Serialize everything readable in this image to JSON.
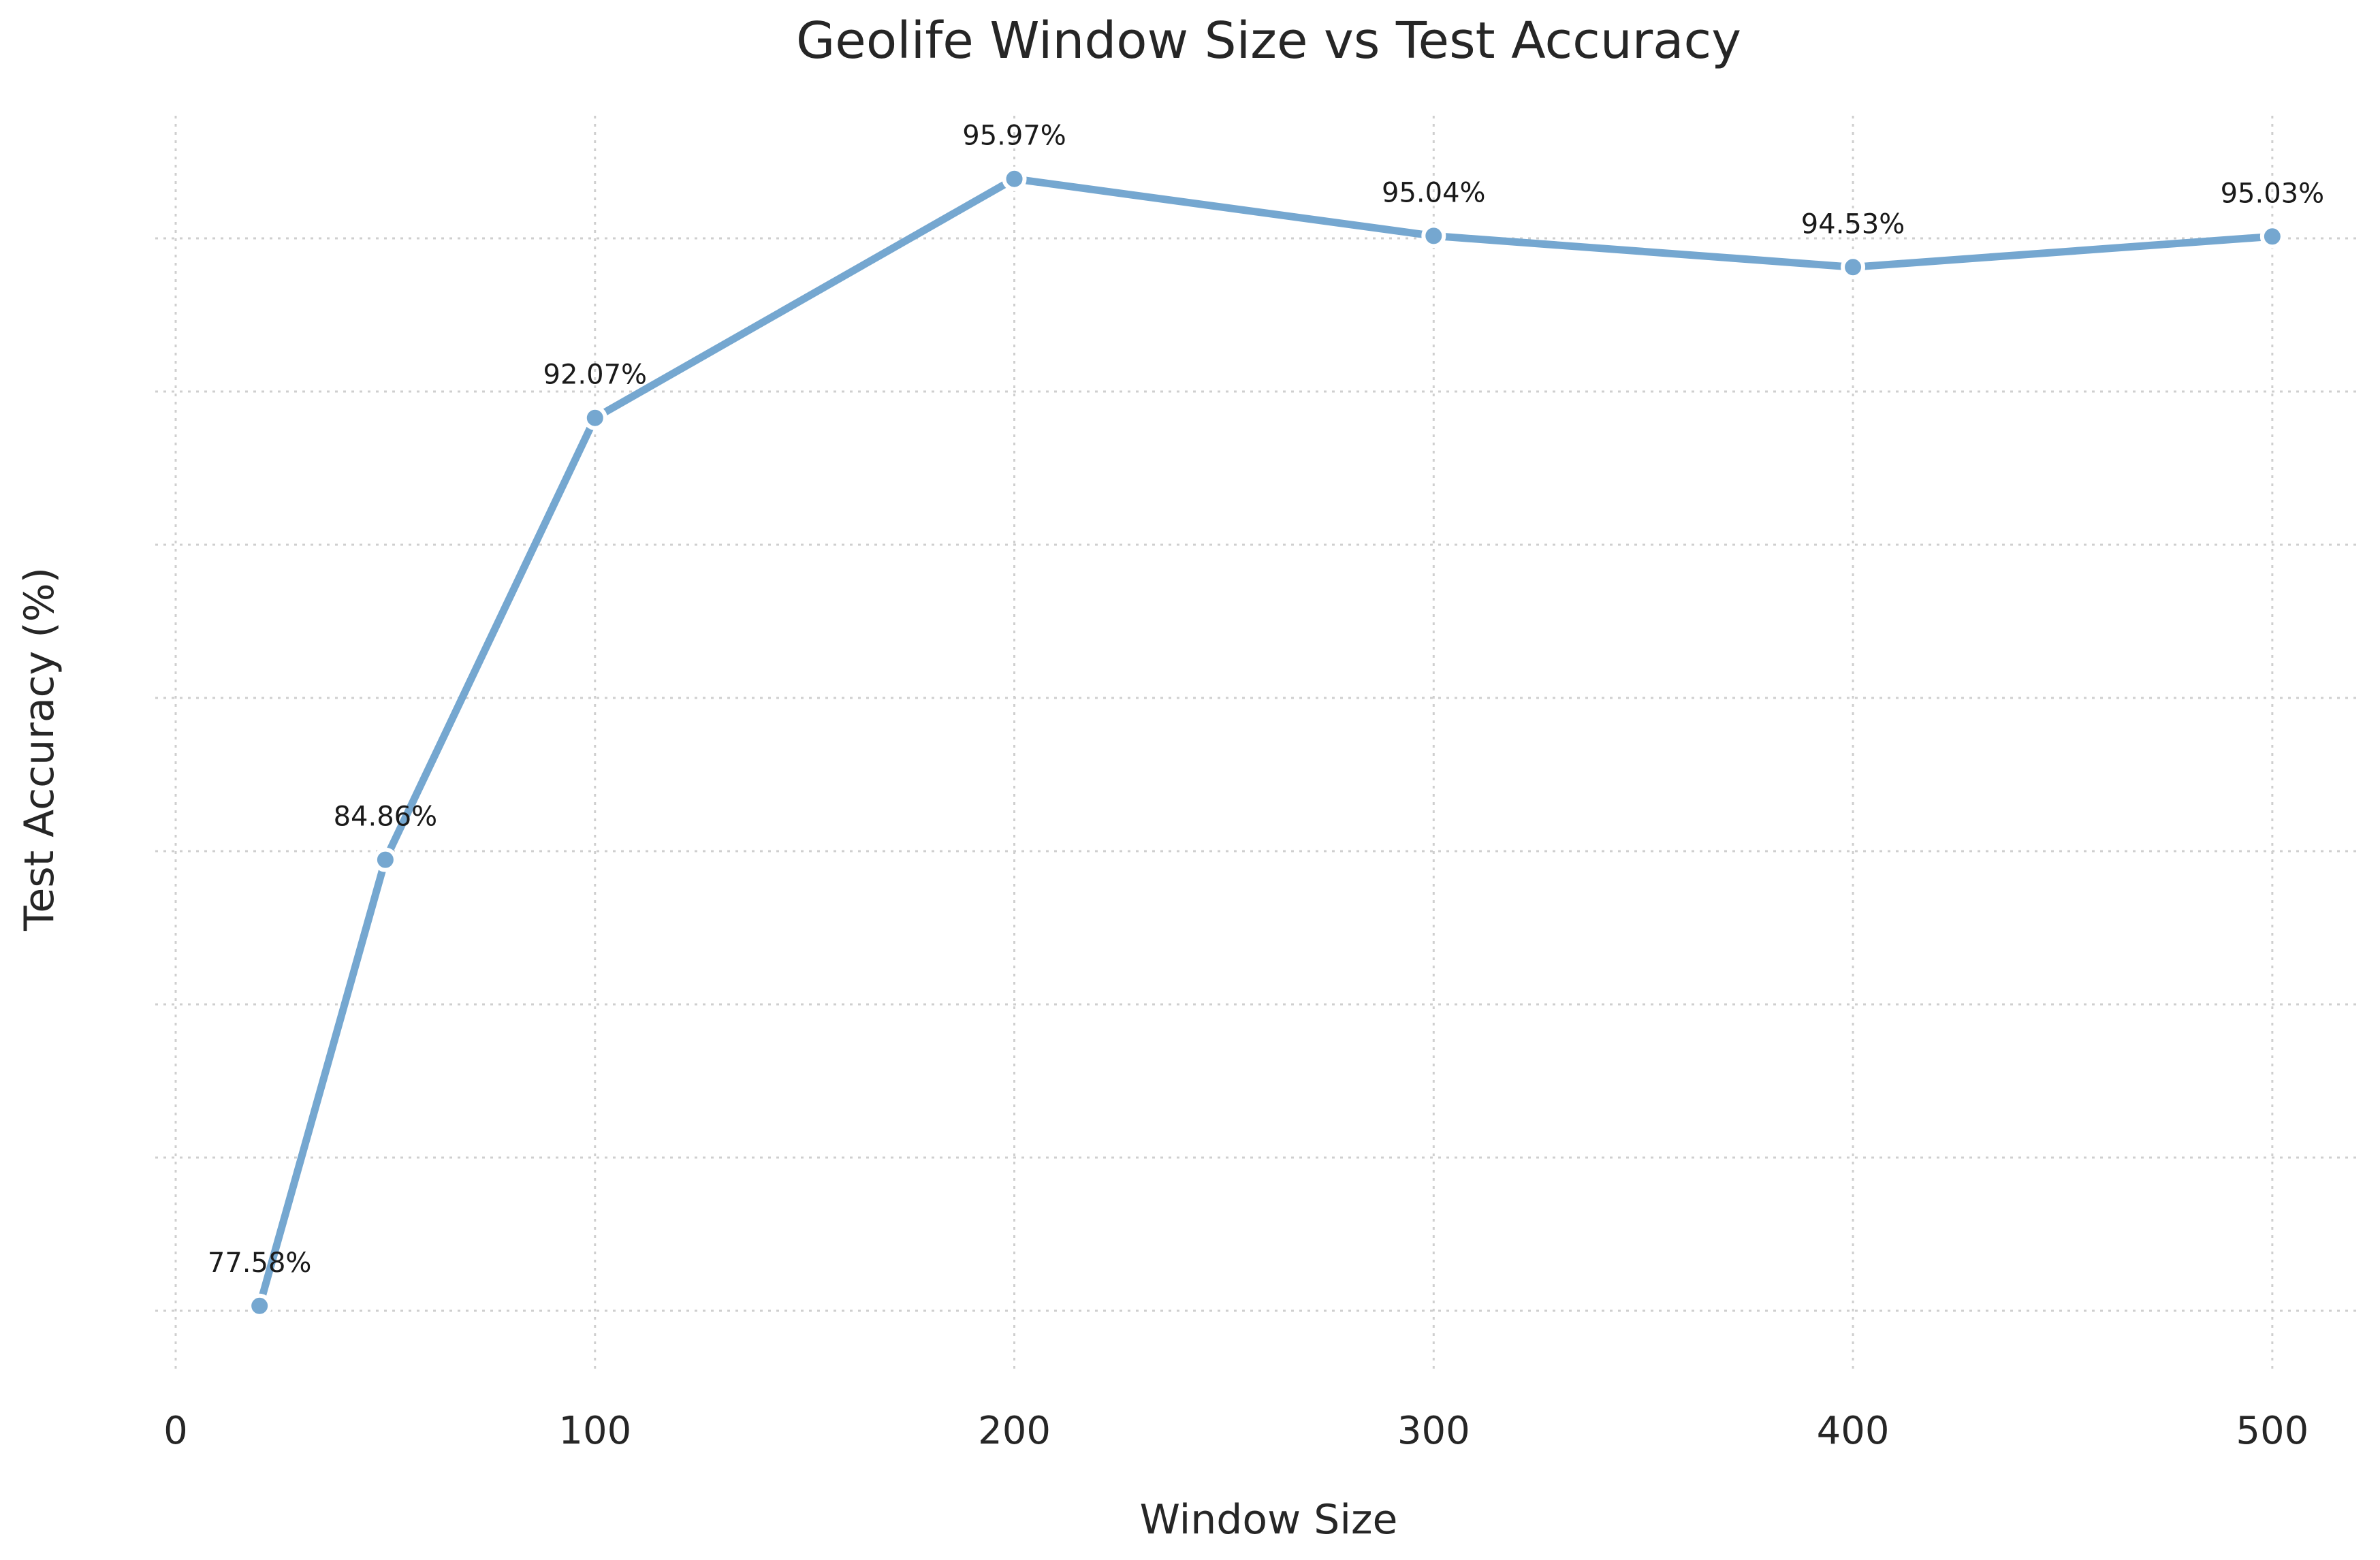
{
  "colors": {
    "series": "#75a7d0",
    "grid": "#cfcfcf",
    "text": "#262626",
    "background": "#ffffff"
  },
  "chart_data": {
    "type": "line",
    "title": "Geolife Window Size vs Test Accuracy",
    "xlabel": "Window Size",
    "ylabel": "Test Accuracy (%)",
    "x": [
      20,
      50,
      100,
      200,
      300,
      400,
      500
    ],
    "series": [
      {
        "values": [
          77.58,
          84.86,
          92.07,
          95.97,
          95.04,
          94.53,
          95.03
        ],
        "labels": [
          "77.58%",
          "84.86%",
          "92.07%",
          "95.97%",
          "95.04%",
          "94.53%",
          "95.03%"
        ]
      }
    ],
    "xticks": [
      0,
      100,
      200,
      300,
      400,
      500
    ],
    "xtick_labels": [
      "0",
      "100",
      "200",
      "300",
      "400",
      "500"
    ],
    "yticks": [
      77.5,
      80,
      82.5,
      85,
      87.5,
      90,
      92.5,
      95
    ],
    "ytick_labels_visible": false,
    "xlim": [
      0,
      520
    ],
    "ylim": [
      76.5,
      97.0
    ],
    "grid": true,
    "grid_style": "dotted",
    "marker": "circle",
    "legend": "none"
  }
}
